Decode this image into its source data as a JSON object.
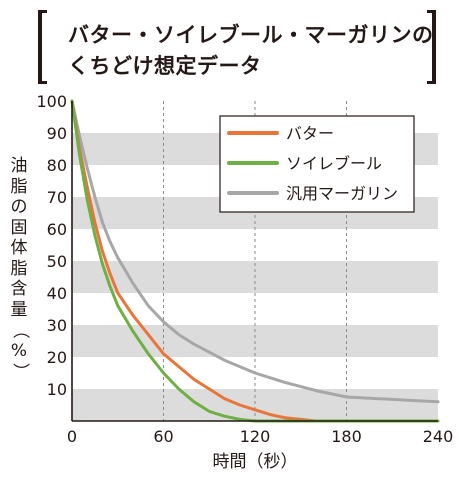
{
  "title": {
    "line1": "バター・ソイレブール・マーガリンの",
    "line2": "くちどけ想定データ"
  },
  "ylabel_chars": [
    "油",
    "脂",
    "の",
    "固",
    "体",
    "脂",
    "含",
    "量",
    "（",
    "%",
    "）"
  ],
  "colors": {
    "butter": "#e8763a",
    "soy": "#6faf45",
    "margarine": "#a7a7a9",
    "band": "#dcdcdd",
    "axis": "#231815"
  },
  "chart_data": {
    "type": "line",
    "title": "バター・ソイレブール・マーガリンのくちどけ想定データ",
    "xlabel": "時間（秒）",
    "ylabel": "油脂の固体脂含量（%）",
    "xlim": [
      0,
      240
    ],
    "ylim": [
      0,
      100
    ],
    "xticks": [
      "0",
      "60",
      "120",
      "180",
      "240"
    ],
    "yticks": [
      "10",
      "20",
      "30",
      "40",
      "50",
      "60",
      "70",
      "80",
      "90",
      "100"
    ],
    "grid": "horizontal gray bands, dashed vertical lines at 60, 120, 180",
    "legend_position": "top-right",
    "series": [
      {
        "name": "バター",
        "color": "#e8763a",
        "x": [
          0,
          5,
          10,
          15,
          20,
          25,
          30,
          40,
          50,
          60,
          70,
          80,
          90,
          100,
          110,
          120,
          130,
          140,
          150,
          160,
          180,
          200,
          220,
          240
        ],
        "y": [
          100,
          85,
          73,
          62,
          53,
          46,
          40,
          33,
          27,
          21,
          17,
          13,
          10,
          7,
          5,
          3.5,
          2,
          1,
          0.5,
          0,
          0,
          0,
          0,
          0
        ]
      },
      {
        "name": "ソイレブール",
        "color": "#6faf45",
        "x": [
          0,
          5,
          10,
          15,
          20,
          25,
          30,
          40,
          50,
          60,
          70,
          80,
          90,
          100,
          110,
          120,
          130,
          140,
          180,
          240
        ],
        "y": [
          100,
          83,
          69,
          58,
          49,
          42,
          36,
          28,
          21,
          15,
          10,
          6,
          3,
          1.5,
          0.5,
          0,
          0,
          0,
          0,
          0
        ]
      },
      {
        "name": "汎用マーガリン",
        "color": "#a7a7a9",
        "x": [
          0,
          5,
          10,
          15,
          20,
          25,
          30,
          40,
          50,
          60,
          70,
          80,
          90,
          100,
          110,
          120,
          140,
          160,
          180,
          200,
          220,
          240
        ],
        "y": [
          100,
          89,
          79,
          70,
          62,
          56,
          51,
          43,
          36,
          31,
          27,
          24,
          21.5,
          19,
          17,
          15,
          12,
          9.5,
          7.5,
          7,
          6.5,
          6
        ]
      }
    ]
  }
}
